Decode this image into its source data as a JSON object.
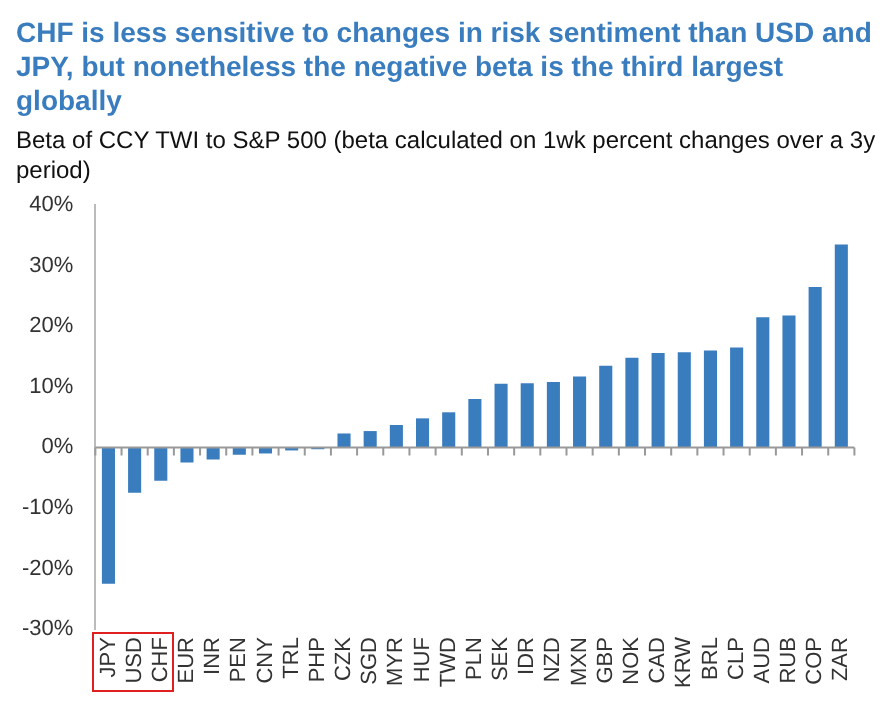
{
  "chart_data": {
    "type": "bar",
    "title": "CHF is less sensitive to changes in risk sentiment than USD and JPY, but nonetheless the negative beta is the third largest globally",
    "subtitle": "Beta of CCY TWI to S&P 500 (beta calculated on 1wk percent changes over a 3y period)",
    "categories": [
      "JPY",
      "USD",
      "CHF",
      "EUR",
      "INR",
      "PEN",
      "CNY",
      "TRL",
      "PHP",
      "CZK",
      "SGD",
      "MYR",
      "HUF",
      "TWD",
      "PLN",
      "SEK",
      "IDR",
      "NZD",
      "MXN",
      "GBP",
      "NOK",
      "CAD",
      "KRW",
      "BRL",
      "CLP",
      "AUD",
      "RUB",
      "COP",
      "ZAR"
    ],
    "values": [
      -22.5,
      -7.5,
      -5.5,
      -2.5,
      -2,
      -1.2,
      -1,
      -0.5,
      -0.3,
      2.3,
      2.7,
      3.7,
      4.8,
      5.8,
      8,
      10.5,
      10.6,
      10.8,
      11.7,
      13.5,
      14.8,
      15.6,
      15.7,
      16,
      16.5,
      21.5,
      21.8,
      26.5,
      33.5
    ],
    "color": "#3a7dbf",
    "ylim": [
      -30,
      40
    ],
    "yticks": [
      {
        "value": -30,
        "label": "-30%"
      },
      {
        "value": -20,
        "label": "-20%"
      },
      {
        "value": -10,
        "label": "-10%"
      },
      {
        "value": 0,
        "label": "0%"
      },
      {
        "value": 10,
        "label": "10%"
      },
      {
        "value": 20,
        "label": "20%"
      },
      {
        "value": 30,
        "label": "30%"
      },
      {
        "value": 40,
        "label": "40%"
      }
    ],
    "legend": false
  }
}
